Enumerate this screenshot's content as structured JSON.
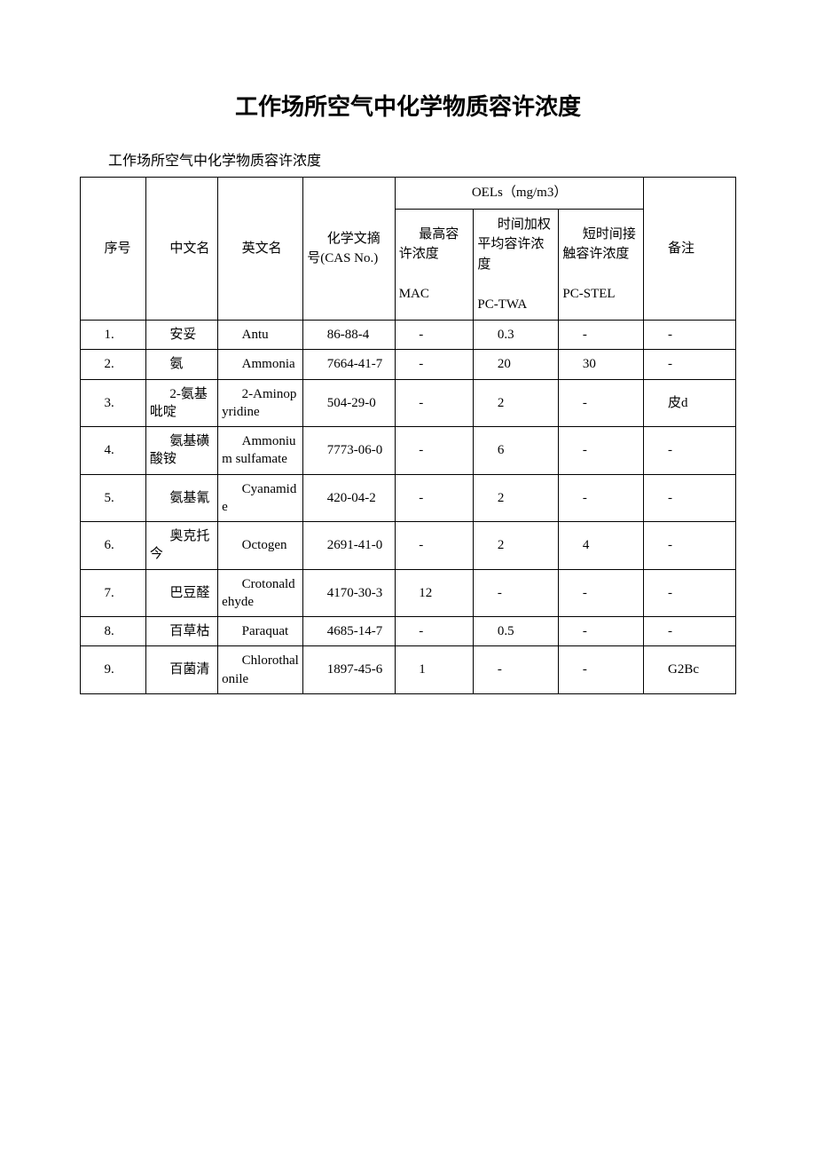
{
  "title": "工作场所空气中化学物质容许浓度",
  "subtitle": "工作场所空气中化学物质容许浓度",
  "table": {
    "header": {
      "seq": "序号",
      "cn": "中文名",
      "en": "英文名",
      "cas": "化学文摘号(CAS No.)",
      "oels": "OELs（mg/m3）",
      "mac_label": "最高容许浓度",
      "mac_sub": "MAC",
      "twa_label": "时间加权平均容许浓度",
      "twa_sub": "PC-TWA",
      "stel_label": "短时间接触容许浓度",
      "stel_sub": "PC-STEL",
      "note": "备注"
    },
    "rows": [
      {
        "seq": "1.",
        "cn": "安妥",
        "en": "Antu",
        "cas": "86-88-4",
        "mac": "-",
        "twa": "0.3",
        "stel": "-",
        "note": "-"
      },
      {
        "seq": "2.",
        "cn": "氨",
        "en": "Ammonia",
        "cas": "7664-41-7",
        "mac": "-",
        "twa": "20",
        "stel": "30",
        "note": "-"
      },
      {
        "seq": "3.",
        "cn": "2-氨基吡啶",
        "en": "2-Aminopyridine",
        "cas": "504-29-0",
        "mac": "-",
        "twa": "2",
        "stel": "-",
        "note": "皮d"
      },
      {
        "seq": "4.",
        "cn": "氨基磺酸铵",
        "en": "Ammonium sulfamate",
        "cas": "7773-06-0",
        "mac": "-",
        "twa": "6",
        "stel": "-",
        "note": "-"
      },
      {
        "seq": "5.",
        "cn": "氨基氰",
        "en": "Cyanamide",
        "cas": "420-04-2",
        "mac": "-",
        "twa": "2",
        "stel": "-",
        "note": "-"
      },
      {
        "seq": "6.",
        "cn": "奥克托今",
        "en": "Octogen",
        "cas": "2691-41-0",
        "mac": "-",
        "twa": "2",
        "stel": "4",
        "note": "-"
      },
      {
        "seq": "7.",
        "cn": "巴豆醛",
        "en": "Crotonaldehyde",
        "cas": "4170-30-3",
        "mac": "12",
        "twa": "-",
        "stel": "-",
        "note": "-"
      },
      {
        "seq": "8.",
        "cn": "百草枯",
        "en": "Paraquat",
        "cas": "4685-14-7",
        "mac": "-",
        "twa": "0.5",
        "stel": "-",
        "note": "-"
      },
      {
        "seq": "9.",
        "cn": "百菌清",
        "en": "Chlorothalonile",
        "cas": "1897-45-6",
        "mac": "1",
        "twa": "-",
        "stel": "-",
        "note": "G2Bc"
      }
    ]
  }
}
